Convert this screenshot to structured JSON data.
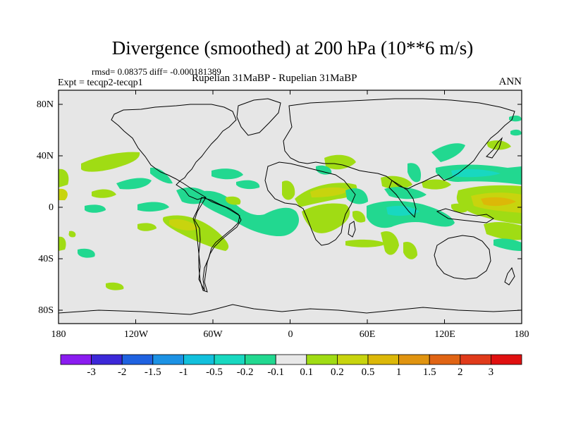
{
  "title": "Divergence (smoothed) at 200 hPa (10**6 m/s)",
  "stats": "rmsd= 0.08375  diff= -0.000181389",
  "expt": "Expt = tecqp2-tecqp1",
  "comparison": "Rupelian  31MaBP - Rupelian  31MaBP",
  "season": "ANN",
  "y_ticks": [
    "80N",
    "40N",
    "0",
    "40S",
    "80S"
  ],
  "x_ticks": [
    "180",
    "120W",
    "60W",
    "0",
    "60E",
    "120E",
    "180"
  ],
  "colorbar": {
    "labels": [
      "-3",
      "-2",
      "-1.5",
      "-1",
      "-0.5",
      "-0.2",
      "-0.1",
      "0.1",
      "0.2",
      "0.5",
      "1",
      "1.5",
      "2",
      "3"
    ],
    "colors": [
      "#8a1cf0",
      "#3c28d8",
      "#1f62e0",
      "#1c92e4",
      "#12c0dc",
      "#18d8c0",
      "#22d890",
      "#e8e8e8",
      "#a0dc14",
      "#c8d40e",
      "#dcb808",
      "#e09410",
      "#e06414",
      "#e03a1a",
      "#e01010"
    ]
  },
  "fill_colors": {
    "background": "#e6e6e6",
    "pos_weak": "#a0dc14",
    "pos_mid": "#c8d40e",
    "pos_strong": "#dcb808",
    "neg_weak": "#22d890",
    "neg_mid": "#18d8c0",
    "neg_strong": "#12c0dc"
  }
}
